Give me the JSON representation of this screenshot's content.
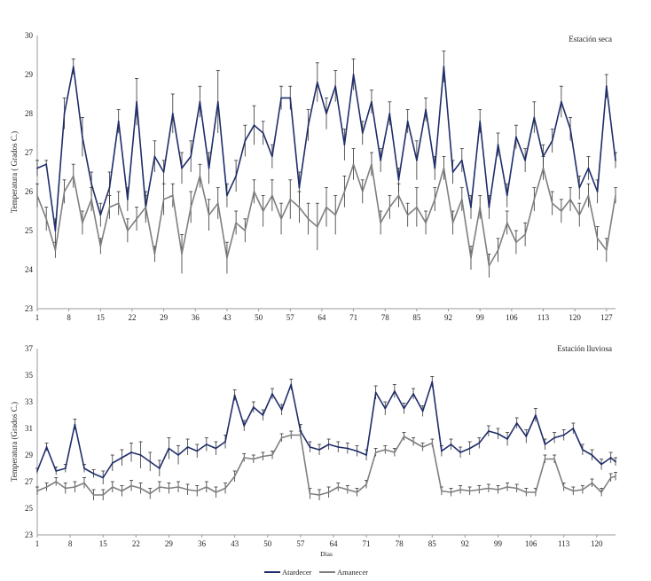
{
  "legend": {
    "series1": "Atardecer",
    "series2": "Amanecer",
    "color1": "#1f2d6b",
    "color2": "#7f7f7f"
  },
  "chart_data": [
    {
      "type": "line",
      "annotation": "Estación seca",
      "ylabel": "Temperatura ( Grados C.)",
      "xlabel": "",
      "ylim": [
        23,
        30
      ],
      "yticks": [
        "23",
        "24",
        "25",
        "26",
        "27",
        "28",
        "29",
        "30"
      ],
      "xlim": [
        1,
        129
      ],
      "xticks": [
        "1",
        "8",
        "15",
        "22",
        "29",
        "36",
        "43",
        "50",
        "57",
        "64",
        "71",
        "78",
        "85",
        "92",
        "99",
        "106",
        "113",
        "120",
        "127"
      ],
      "series": [
        {
          "name": "Atardecer",
          "color": "#1f2d6b",
          "x": [
            1,
            3,
            5,
            7,
            9,
            11,
            13,
            15,
            17,
            19,
            21,
            23,
            25,
            27,
            29,
            31,
            33,
            35,
            37,
            39,
            41,
            43,
            45,
            47,
            49,
            51,
            53,
            55,
            57,
            59,
            61,
            63,
            65,
            67,
            69,
            71,
            73,
            75,
            77,
            79,
            81,
            83,
            85,
            87,
            89,
            91,
            93,
            95,
            97,
            99,
            101,
            103,
            105,
            107,
            109,
            111,
            113,
            115,
            117,
            119,
            121,
            123,
            125,
            127,
            129
          ],
          "values": [
            26.6,
            26.7,
            25.0,
            28.0,
            29.2,
            27.4,
            26.2,
            25.4,
            26.1,
            27.8,
            25.8,
            28.3,
            25.6,
            26.9,
            26.5,
            28.0,
            26.6,
            26.9,
            28.3,
            26.6,
            28.3,
            25.9,
            26.4,
            27.3,
            27.7,
            27.5,
            26.9,
            28.4,
            28.4,
            26.1,
            27.7,
            28.8,
            28.0,
            28.7,
            27.2,
            29.0,
            27.5,
            28.3,
            26.8,
            28.0,
            26.3,
            27.8,
            26.8,
            28.1,
            26.6,
            29.2,
            26.5,
            26.8,
            25.6,
            27.8,
            25.6,
            27.2,
            25.9,
            27.4,
            26.8,
            27.9,
            26.9,
            27.3,
            28.3,
            27.6,
            26.1,
            26.6,
            26.0,
            28.7,
            26.8
          ],
          "errors": [
            0.2,
            0.1,
            0.3,
            0.4,
            0.2,
            0.5,
            0.3,
            0.3,
            0.4,
            0.3,
            0.3,
            0.6,
            0.4,
            0.4,
            0.3,
            0.5,
            0.4,
            0.4,
            0.4,
            0.4,
            0.8,
            0.3,
            0.4,
            0.4,
            0.5,
            0.3,
            0.3,
            0.3,
            0.3,
            0.4,
            0.4,
            0.5,
            0.4,
            0.4,
            0.4,
            0.4,
            0.3,
            0.3,
            0.3,
            0.3,
            0.3,
            0.3,
            0.5,
            0.3,
            0.3,
            0.4,
            0.3,
            0.3,
            0.3,
            0.3,
            0.3,
            0.3,
            0.3,
            0.3,
            0.3,
            0.4,
            0.3,
            0.3,
            0.4,
            0.3,
            0.3,
            0.3,
            0.3,
            0.3,
            0.2
          ]
        },
        {
          "name": "Amanecer",
          "color": "#7f7f7f",
          "x": [
            1,
            3,
            5,
            7,
            9,
            11,
            13,
            15,
            17,
            19,
            21,
            23,
            25,
            27,
            29,
            31,
            33,
            35,
            37,
            39,
            41,
            43,
            45,
            47,
            49,
            51,
            53,
            55,
            57,
            59,
            61,
            63,
            65,
            67,
            69,
            71,
            73,
            75,
            77,
            79,
            81,
            83,
            85,
            87,
            89,
            91,
            93,
            95,
            97,
            99,
            101,
            103,
            105,
            107,
            109,
            111,
            113,
            115,
            117,
            119,
            121,
            123,
            125,
            127,
            129
          ],
          "values": [
            25.9,
            25.3,
            24.5,
            26.0,
            26.4,
            25.2,
            25.8,
            24.6,
            25.6,
            25.7,
            25.0,
            25.3,
            25.6,
            24.4,
            25.8,
            25.9,
            24.4,
            25.6,
            26.4,
            25.4,
            25.7,
            24.3,
            25.2,
            25.0,
            26.0,
            25.5,
            25.9,
            25.3,
            25.8,
            25.6,
            25.3,
            25.1,
            25.6,
            25.4,
            26.0,
            26.7,
            26.0,
            26.7,
            25.2,
            25.6,
            25.9,
            25.4,
            25.6,
            25.2,
            25.8,
            26.6,
            25.2,
            25.8,
            24.3,
            25.6,
            24.1,
            24.5,
            25.2,
            24.7,
            24.9,
            25.8,
            26.6,
            25.7,
            25.5,
            25.8,
            25.4,
            25.9,
            24.8,
            24.5,
            25.9
          ],
          "errors": [
            0.3,
            0.3,
            0.2,
            0.3,
            0.3,
            0.3,
            0.3,
            0.2,
            0.3,
            0.3,
            0.3,
            0.3,
            0.3,
            0.2,
            0.4,
            0.3,
            0.5,
            0.4,
            0.3,
            0.4,
            0.4,
            0.4,
            0.3,
            0.3,
            0.3,
            0.4,
            0.4,
            0.4,
            0.5,
            0.4,
            0.4,
            0.6,
            0.5,
            0.5,
            0.4,
            0.4,
            0.3,
            0.3,
            0.3,
            0.3,
            0.3,
            0.3,
            0.5,
            0.3,
            0.3,
            0.3,
            0.3,
            0.3,
            0.3,
            0.3,
            0.3,
            0.3,
            0.3,
            0.3,
            0.3,
            0.3,
            0.3,
            0.3,
            0.3,
            0.3,
            0.3,
            0.3,
            0.3,
            0.3,
            0.2
          ]
        }
      ]
    },
    {
      "type": "line",
      "annotation": "Estación lluviosa",
      "ylabel": "Temperatura (Grados C.)",
      "xlabel": "Días",
      "ylim": [
        23,
        37
      ],
      "yticks": [
        "23",
        "25",
        "27",
        "29",
        "31",
        "33",
        "35",
        "37"
      ],
      "xlim": [
        1,
        124
      ],
      "xticks": [
        "1",
        "8",
        "15",
        "22",
        "29",
        "36",
        "43",
        "50",
        "57",
        "64",
        "71",
        "78",
        "85",
        "92",
        "99",
        "106",
        "113",
        "120"
      ],
      "series": [
        {
          "name": "Atardecer",
          "color": "#1f2d6b",
          "x": [
            1,
            3,
            5,
            7,
            9,
            11,
            13,
            15,
            17,
            19,
            21,
            23,
            25,
            27,
            29,
            31,
            33,
            35,
            37,
            39,
            41,
            43,
            45,
            47,
            49,
            51,
            53,
            55,
            57,
            59,
            61,
            63,
            65,
            67,
            69,
            71,
            73,
            75,
            77,
            79,
            81,
            83,
            85,
            87,
            89,
            91,
            93,
            95,
            97,
            99,
            101,
            103,
            105,
            107,
            109,
            111,
            113,
            115,
            117,
            119,
            121,
            123,
            124
          ],
          "values": [
            27.8,
            29.6,
            27.8,
            28.0,
            31.3,
            28.0,
            27.6,
            27.3,
            28.4,
            28.8,
            29.2,
            29.0,
            28.5,
            28.0,
            29.5,
            29.0,
            29.6,
            29.3,
            29.8,
            29.5,
            30.0,
            33.5,
            31.2,
            32.6,
            32.0,
            33.6,
            32.4,
            34.3,
            30.8,
            29.6,
            29.4,
            29.8,
            29.6,
            29.5,
            29.3,
            29.0,
            33.7,
            32.5,
            33.8,
            32.5,
            33.6,
            32.3,
            34.5,
            29.3,
            29.8,
            29.2,
            29.5,
            29.9,
            30.8,
            30.6,
            30.2,
            31.4,
            30.4,
            32.0,
            29.8,
            30.3,
            30.5,
            31.0,
            29.4,
            29.0,
            28.3,
            28.8,
            28.5
          ],
          "errors": [
            0.2,
            0.3,
            0.3,
            0.3,
            0.4,
            0.3,
            0.3,
            0.5,
            0.6,
            0.6,
            0.7,
            1.0,
            0.7,
            0.6,
            0.8,
            0.7,
            0.6,
            0.5,
            0.5,
            0.5,
            0.5,
            0.4,
            0.4,
            0.4,
            0.4,
            0.4,
            0.4,
            0.4,
            0.5,
            0.4,
            0.4,
            0.4,
            0.4,
            0.4,
            0.4,
            0.4,
            0.5,
            0.5,
            0.5,
            0.4,
            0.4,
            0.4,
            0.4,
            0.4,
            0.4,
            0.4,
            0.5,
            0.4,
            0.4,
            0.4,
            0.5,
            0.4,
            0.5,
            0.5,
            0.4,
            0.4,
            0.4,
            0.4,
            0.4,
            0.4,
            0.4,
            0.4,
            0.3
          ]
        },
        {
          "name": "Amanecer",
          "color": "#7f7f7f",
          "x": [
            1,
            3,
            5,
            7,
            9,
            11,
            13,
            15,
            17,
            19,
            21,
            23,
            25,
            27,
            29,
            31,
            33,
            35,
            37,
            39,
            41,
            43,
            45,
            47,
            49,
            51,
            53,
            55,
            57,
            59,
            61,
            63,
            65,
            67,
            69,
            71,
            73,
            75,
            77,
            79,
            81,
            83,
            85,
            87,
            89,
            91,
            93,
            95,
            97,
            99,
            101,
            103,
            105,
            107,
            109,
            111,
            113,
            115,
            117,
            119,
            121,
            123,
            124
          ],
          "values": [
            26.3,
            26.6,
            27.0,
            26.5,
            26.6,
            26.9,
            26.0,
            26.0,
            26.6,
            26.3,
            26.7,
            26.5,
            26.1,
            26.6,
            26.5,
            26.6,
            26.4,
            26.3,
            26.6,
            26.2,
            26.5,
            27.4,
            28.8,
            28.7,
            28.9,
            29.0,
            30.3,
            30.5,
            30.5,
            26.1,
            26.0,
            26.2,
            26.6,
            26.4,
            26.2,
            26.8,
            29.2,
            29.4,
            29.2,
            30.4,
            30.0,
            29.6,
            29.9,
            26.3,
            26.2,
            26.4,
            26.3,
            26.4,
            26.5,
            26.4,
            26.6,
            26.5,
            26.2,
            26.2,
            28.7,
            28.7,
            26.6,
            26.3,
            26.4,
            26.9,
            26.2,
            27.3,
            27.4
          ],
          "errors": [
            0.3,
            0.3,
            0.3,
            0.4,
            0.4,
            0.4,
            0.4,
            0.4,
            0.4,
            0.4,
            0.4,
            0.4,
            0.4,
            0.4,
            0.4,
            0.4,
            0.4,
            0.4,
            0.4,
            0.4,
            0.4,
            0.4,
            0.3,
            0.3,
            0.3,
            0.3,
            0.3,
            0.3,
            0.3,
            0.4,
            0.4,
            0.4,
            0.3,
            0.3,
            0.3,
            0.3,
            0.3,
            0.3,
            0.3,
            0.3,
            0.3,
            0.3,
            0.3,
            0.3,
            0.3,
            0.3,
            0.3,
            0.3,
            0.3,
            0.3,
            0.3,
            0.3,
            0.3,
            0.3,
            0.3,
            0.3,
            0.3,
            0.3,
            0.3,
            0.3,
            0.3,
            0.3,
            0.3
          ]
        }
      ]
    }
  ]
}
